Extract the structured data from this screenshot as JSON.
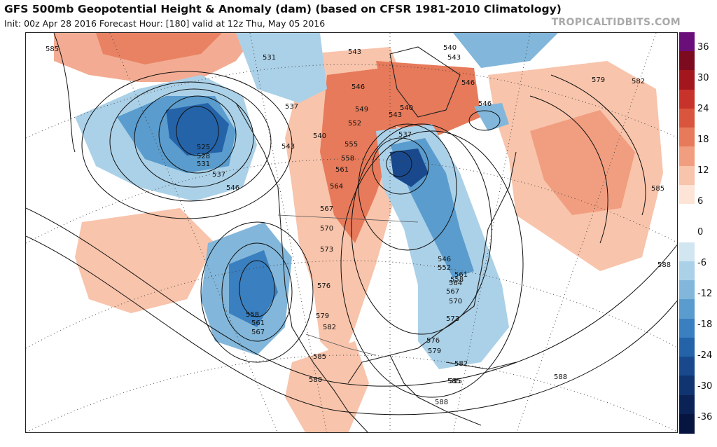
{
  "header": {
    "title": "GFS 500mb Geopotential Height & Anomaly (dam) (based on CFSR 1981-2010 Climatology)",
    "subtitle": "Init: 00z Apr 28 2016   Forecast Hour: [180]   valid at 12z Thu, May 05 2016",
    "brand": "TROPICALTIDBITS.COM"
  },
  "colorbar": {
    "labels": [
      "36",
      "30",
      "24",
      "18",
      "12",
      "6",
      "0",
      "-6",
      "-12",
      "-18",
      "-24",
      "-30",
      "-36"
    ],
    "colors": [
      "#6a0f7a",
      "#7d0b1f",
      "#a4161d",
      "#c7322b",
      "#d9553d",
      "#e67a5a",
      "#f19e80",
      "#f8c4ab",
      "#fde4d6",
      "#ffffff",
      "#ffffff",
      "#d2e6f2",
      "#abd1e8",
      "#82b7db",
      "#5a9ccd",
      "#3a7fbf",
      "#2563a8",
      "#19498c",
      "#103470",
      "#0a2255",
      "#061540"
    ]
  },
  "map": {
    "contour_labels": [
      "585",
      "531",
      "543",
      "540",
      "543",
      "546",
      "546",
      "537",
      "546",
      "549",
      "552",
      "543",
      "540",
      "537",
      "540",
      "543",
      "555",
      "558",
      "561",
      "525",
      "528",
      "531",
      "537",
      "546",
      "564",
      "567",
      "570",
      "573",
      "576",
      "579",
      "582",
      "579",
      "582",
      "585",
      "546",
      "552",
      "558",
      "561",
      "564",
      "567",
      "570",
      "573",
      "576",
      "579",
      "582",
      "585",
      "588",
      "585",
      "558",
      "561",
      "567",
      "588",
      "588",
      "585",
      "588"
    ]
  }
}
